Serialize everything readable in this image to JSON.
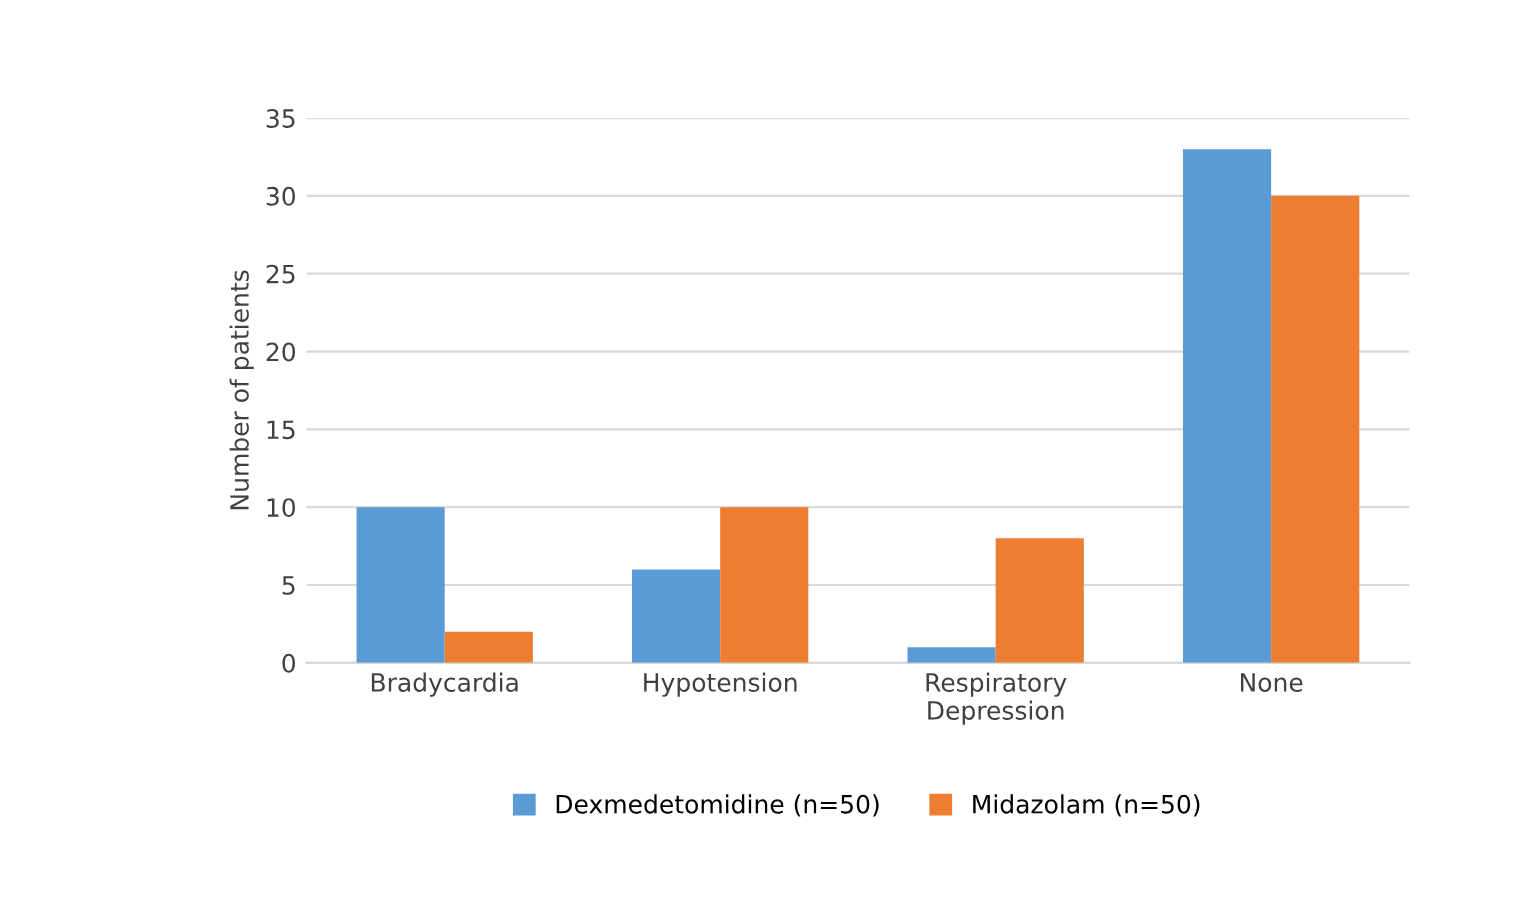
{
  "chart_data": {
    "type": "bar",
    "ylabel": "Number of patients",
    "categories": [
      "Bradycardia",
      "Hypotension",
      "Respiratory\nDepression",
      "None"
    ],
    "series": [
      {
        "name": "Dexmedetomidine (n=50)",
        "color": "#5b9bd5",
        "values": [
          10,
          6,
          1,
          33
        ]
      },
      {
        "name": "Midazolam (n=50)",
        "color": "#ed7d31",
        "values": [
          2,
          10,
          8,
          30
        ]
      }
    ],
    "ylim": [
      0,
      35
    ],
    "yticks": [
      0,
      5,
      10,
      15,
      20,
      25,
      30,
      35
    ],
    "grid": "y",
    "legend": "bottom"
  }
}
